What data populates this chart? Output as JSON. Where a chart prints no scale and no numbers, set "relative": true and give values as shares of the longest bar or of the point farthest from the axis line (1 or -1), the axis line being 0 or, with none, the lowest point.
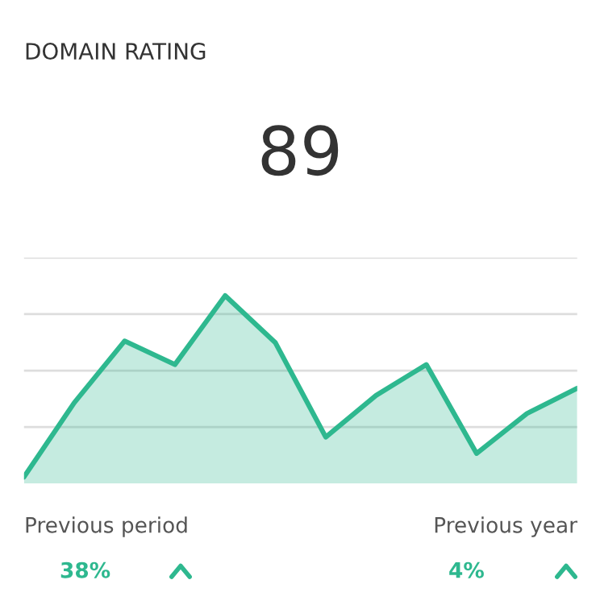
{
  "chart_data": {
    "type": "area",
    "title": "DOMAIN RATING",
    "relative": true,
    "grid": "y",
    "categories": [
      null,
      null,
      null,
      null,
      null,
      null,
      null,
      null,
      null,
      null,
      null,
      null
    ],
    "series": [
      {
        "color": "#2eb88f",
        "values": [
          0,
          0.41,
          0.75,
          0.62,
          1,
          0.74,
          0.22,
          0.45,
          0.62,
          0.13,
          0.35,
          0.49
        ]
      }
    ],
    "annotations": [
      "89",
      "Previous period",
      "38%",
      "Previous year",
      "4%"
    ]
  }
}
